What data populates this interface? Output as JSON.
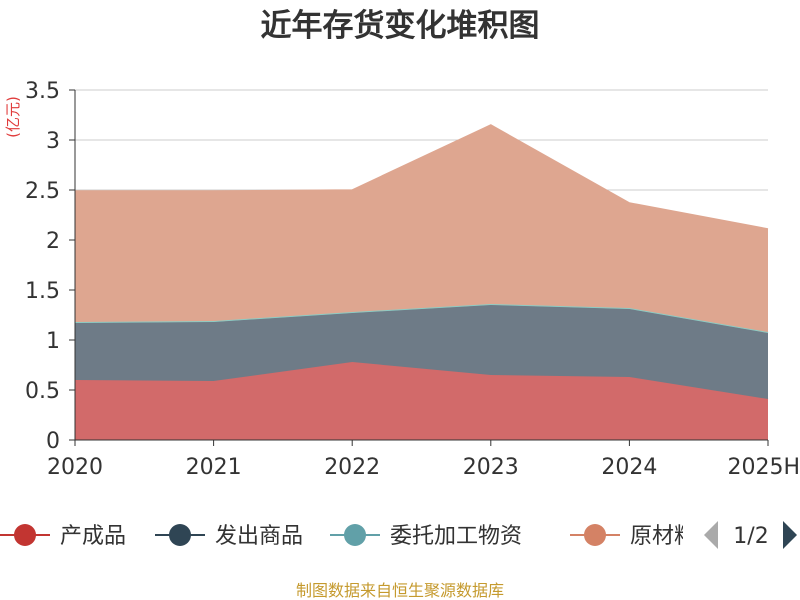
{
  "chart_data": {
    "type": "area",
    "title": "近年存货变化堆积图",
    "ylabel": "(亿元)",
    "xlabel": "",
    "categories": [
      "2020",
      "2021",
      "2022",
      "2023",
      "2024",
      "2025H"
    ],
    "ylim": [
      0,
      3.5
    ],
    "yticks": [
      "0",
      "0.5",
      "1",
      "1.5",
      "2",
      "2.5",
      "3",
      "3.5"
    ],
    "stacked": true,
    "grid": true,
    "legend_position": "bottom",
    "series": [
      {
        "name": "产成品",
        "color": "#d26a6a",
        "values": [
          0.6,
          0.59,
          0.78,
          0.65,
          0.63,
          0.41
        ]
      },
      {
        "name": "发出商品",
        "color": "#6e7b87",
        "values": [
          0.57,
          0.59,
          0.49,
          0.7,
          0.68,
          0.66
        ]
      },
      {
        "name": "委托加工物资",
        "color": "#8ecbc3",
        "values": [
          0.01,
          0.01,
          0.01,
          0.01,
          0.01,
          0.01
        ]
      },
      {
        "name": "原材料",
        "color": "#dea690",
        "values": [
          1.31,
          1.3,
          1.22,
          1.79,
          1.05,
          1.03
        ]
      }
    ],
    "legend": {
      "items": [
        {
          "name": "产成品",
          "color": "#c23531"
        },
        {
          "name": "发出商品",
          "color": "#2f4554"
        },
        {
          "name": "委托加工物资",
          "color": "#61a0a8"
        },
        {
          "name": "原材料",
          "color": "#d48265"
        }
      ],
      "page": "1/2"
    }
  },
  "footer": {
    "source": "制图数据来自恒生聚源数据库"
  }
}
